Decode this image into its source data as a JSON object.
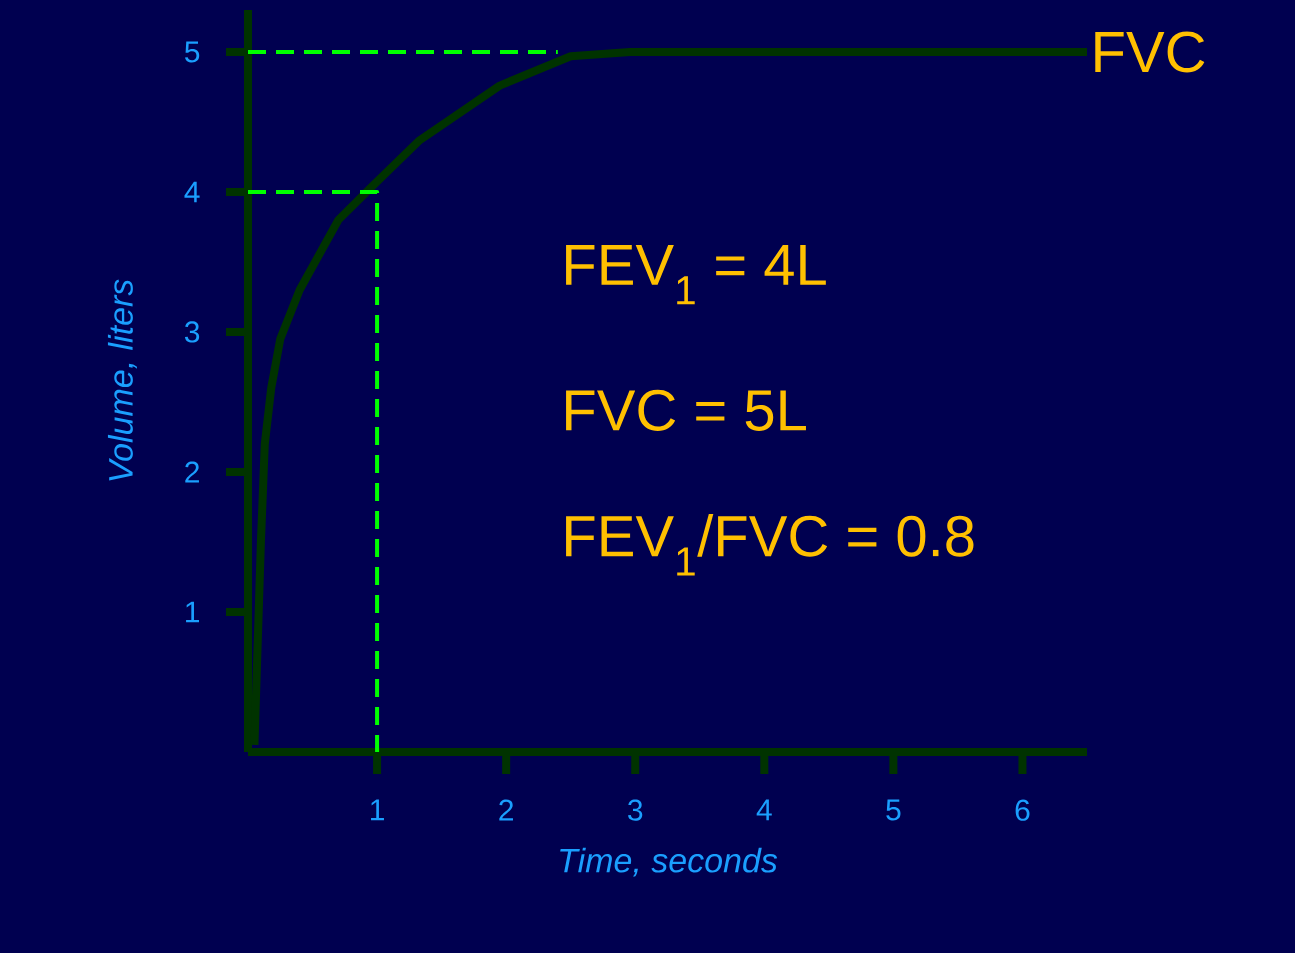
{
  "chart_data": {
    "type": "line",
    "xlabel": "Time, seconds",
    "ylabel": "Volume, liters",
    "xlim": [
      0,
      6.5
    ],
    "ylim": [
      0,
      5.3
    ],
    "xticks": [
      1,
      2,
      3,
      4,
      5,
      6
    ],
    "yticks": [
      1,
      2,
      3,
      4,
      5
    ],
    "series": [
      {
        "name": "FVC",
        "color": "#003300",
        "line_style": "solid",
        "x": [
          0.05,
          0.1,
          0.13,
          0.18,
          0.25,
          0.4,
          0.7,
          0.95,
          1.33,
          1.95,
          2.5,
          2.96,
          6.5
        ],
        "values": [
          0.05,
          1.5,
          2.2,
          2.6,
          2.95,
          3.3,
          3.8,
          4.03,
          4.37,
          4.76,
          4.97,
          5.0,
          5.0
        ]
      },
      {
        "color": "#00ff00",
        "line_style": "dashed",
        "x": [
          0,
          1,
          1
        ],
        "values": [
          4,
          4,
          0
        ]
      },
      {
        "color": "#00ff00",
        "line_style": "dashed",
        "x": [
          0,
          2.4
        ],
        "values": [
          5,
          5
        ]
      }
    ],
    "annotations": [
      "FEV$_{1}$ = 4L",
      "FVC  = 5L",
      "FEV$_{1}$/FVC = 0.8"
    ]
  }
}
